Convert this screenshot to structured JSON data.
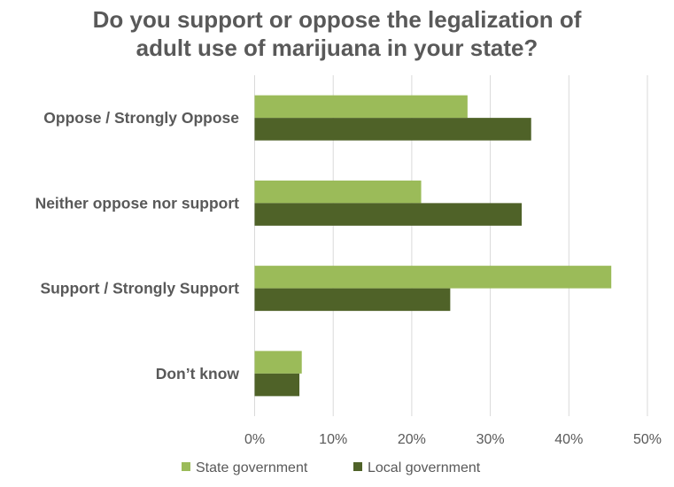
{
  "chart_data": {
    "type": "bar",
    "orientation": "horizontal",
    "title_lines": [
      "Do you support or oppose the legalization of",
      "adult use of marijuana in your state?"
    ],
    "categories": [
      "Oppose / Strongly Oppose",
      "Neither oppose nor support",
      "Support / Strongly Support",
      "Don’t know"
    ],
    "series": [
      {
        "name": "State government",
        "color": "#9BBB59",
        "values": [
          27.1,
          21.2,
          45.4,
          6.0
        ]
      },
      {
        "name": "Local government",
        "color": "#4F6228",
        "values": [
          35.2,
          34.0,
          24.9,
          5.7
        ]
      }
    ],
    "xlim": [
      0,
      50
    ],
    "xticks": [
      "0%",
      "10%",
      "20%",
      "30%",
      "40%",
      "50%"
    ],
    "grid": true,
    "legend": "bottom"
  }
}
